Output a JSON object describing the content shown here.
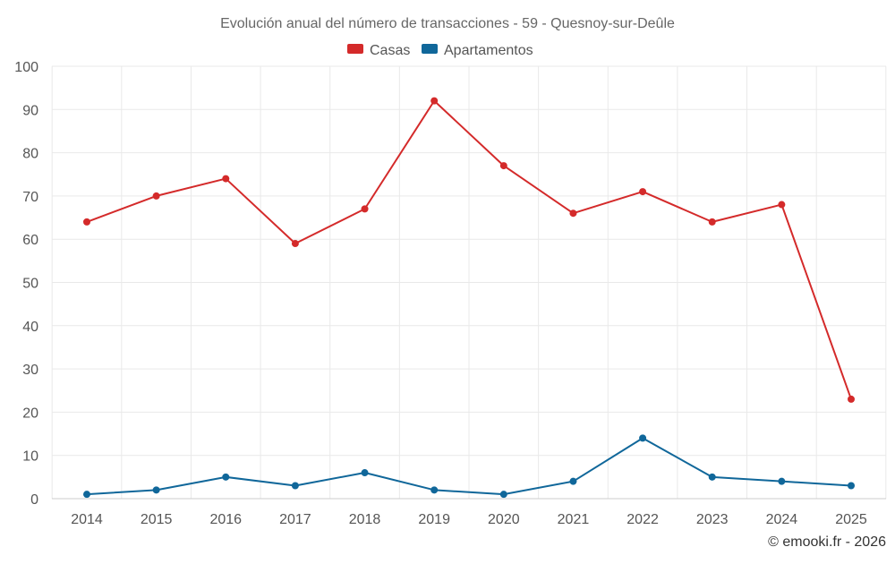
{
  "chart_data": {
    "type": "line",
    "title": "Evolución anual del número de transacciones - 59 - Quesnoy-sur-Deûle",
    "xlabel": "",
    "ylabel": "",
    "categories": [
      "2014",
      "2015",
      "2016",
      "2017",
      "2018",
      "2019",
      "2020",
      "2021",
      "2022",
      "2023",
      "2024",
      "2025"
    ],
    "ylim": [
      0,
      100
    ],
    "yticks": [
      0,
      10,
      20,
      30,
      40,
      50,
      60,
      70,
      80,
      90,
      100
    ],
    "ytick_labels": [
      "0",
      "10",
      "20",
      "30",
      "40",
      "50",
      "60",
      "70",
      "80",
      "90",
      "100"
    ],
    "grid": true,
    "legend_position": "top-center",
    "series": [
      {
        "name": "Casas",
        "color": "#d42a2a",
        "values": [
          64,
          70,
          74,
          59,
          67,
          92,
          77,
          66,
          71,
          64,
          68,
          23
        ]
      },
      {
        "name": "Apartamentos",
        "color": "#10679a",
        "values": [
          1,
          2,
          5,
          3,
          6,
          2,
          1,
          4,
          14,
          5,
          4,
          3
        ]
      }
    ]
  },
  "credit": "© emooki.fr - 2026"
}
